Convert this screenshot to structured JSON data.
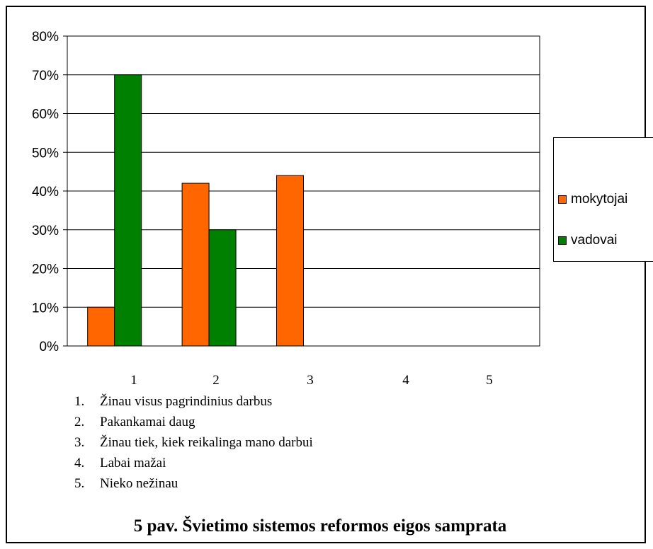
{
  "chart_data": {
    "type": "bar",
    "categories": [
      "1",
      "2",
      "3",
      "4",
      "5"
    ],
    "series": [
      {
        "name": "mokytojai",
        "color": "#ff6600",
        "values": [
          10,
          42,
          44,
          0,
          0
        ]
      },
      {
        "name": "vadovai",
        "color": "#008000",
        "values": [
          70,
          30,
          0,
          0,
          0
        ]
      }
    ],
    "yticks": [
      "0%",
      "10%",
      "20%",
      "30%",
      "40%",
      "50%",
      "60%",
      "70%",
      "80%"
    ],
    "ylim": [
      0,
      80
    ],
    "grid": true,
    "legend": "right",
    "title": "",
    "xlabel": "",
    "ylabel": ""
  },
  "notes": [
    {
      "num": "1.",
      "text": "Žinau visus pagrindinius darbus"
    },
    {
      "num": "2.",
      "text": "Pakankamai daug"
    },
    {
      "num": "3.",
      "text": "Žinau tiek, kiek reikalinga mano darbui"
    },
    {
      "num": "4.",
      "text": "Labai mažai"
    },
    {
      "num": "5.",
      "text": "Nieko nežinau"
    }
  ],
  "caption": "5 pav. Švietimo sistemos reformos eigos samprata"
}
